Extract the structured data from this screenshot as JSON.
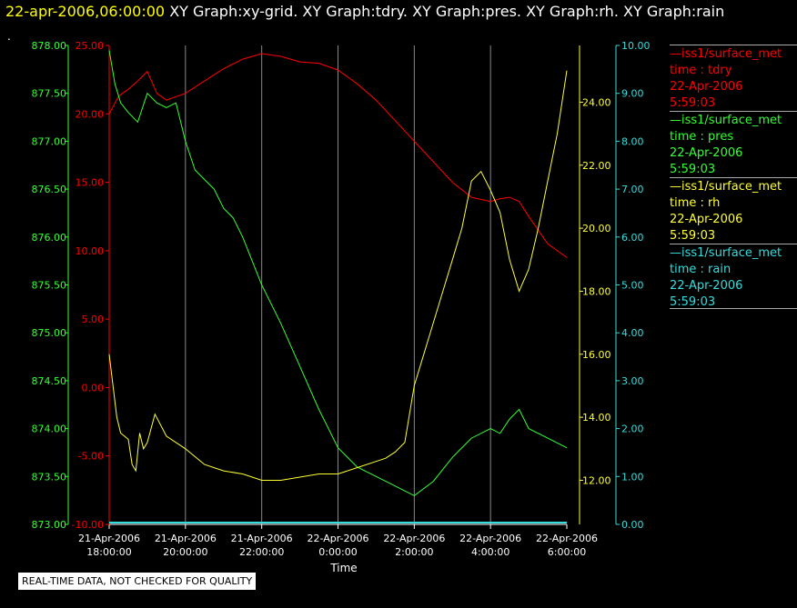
{
  "header": {
    "timestamp": "22-apr-2006,06:00:00",
    "titles": "XY Graph:xy-grid.  XY Graph:tdry.  XY Graph:pres.  XY Graph:rh.  XY Graph:rain"
  },
  "marker": ".",
  "note": "REAL-TIME DATA, NOT CHECKED FOR QUALITY",
  "legend": [
    {
      "source": "—iss1/surface_met",
      "var": "time : tdry",
      "date": "22-Apr-2006",
      "time": "5:59:03",
      "color": "#ff0000"
    },
    {
      "source": "—iss1/surface_met",
      "var": "time : pres",
      "date": "22-Apr-2006",
      "time": "5:59:03",
      "color": "#33ff33"
    },
    {
      "source": "—iss1/surface_met",
      "var": "time : rh",
      "date": "22-Apr-2006",
      "time": "5:59:03",
      "color": "#ffff33"
    },
    {
      "source": "—iss1/surface_met",
      "var": "time : rain",
      "date": "22-Apr-2006",
      "time": "5:59:03",
      "color": "#33dddd"
    }
  ],
  "chart_data": {
    "type": "line",
    "xlabel": "Time",
    "x_ticks": [
      {
        "date": "21-Apr-2006",
        "time": "18:00:00"
      },
      {
        "date": "21-Apr-2006",
        "time": "20:00:00"
      },
      {
        "date": "21-Apr-2006",
        "time": "22:00:00"
      },
      {
        "date": "22-Apr-2006",
        "time": "0:00:00"
      },
      {
        "date": "22-Apr-2006",
        "time": "2:00:00"
      },
      {
        "date": "22-Apr-2006",
        "time": "4:00:00"
      },
      {
        "date": "22-Apr-2006",
        "time": "6:00:00"
      }
    ],
    "x_hours": [
      0,
      2,
      4,
      6,
      8,
      10,
      12
    ],
    "grid": "vertical",
    "axes": {
      "pres": {
        "color": "#33ff33",
        "ylim": [
          873.0,
          878.0
        ],
        "ticks": [
          "873.00",
          "873.50",
          "874.00",
          "874.50",
          "875.00",
          "875.50",
          "876.00",
          "876.50",
          "877.00",
          "877.50",
          "878.00"
        ]
      },
      "tdry": {
        "color": "#ff0000",
        "ylim": [
          -10.0,
          25.0
        ],
        "ticks": [
          "-10.00",
          "-5.00",
          "0.00",
          "5.00",
          "10.00",
          "15.00",
          "20.00",
          "25.00"
        ]
      },
      "rh": {
        "color": "#ffff33",
        "ylim": [
          10.6,
          25.8
        ],
        "ticks": [
          "12.00",
          "14.00",
          "16.00",
          "18.00",
          "20.00",
          "22.00",
          "24.00"
        ]
      },
      "rain": {
        "color": "#33dddd",
        "ylim": [
          0.0,
          10.0
        ],
        "ticks": [
          "0.00",
          "1.00",
          "2.00",
          "3.00",
          "4.00",
          "5.00",
          "6.00",
          "7.00",
          "8.00",
          "9.00",
          "10.00"
        ]
      }
    },
    "series": [
      {
        "name": "tdry",
        "axis": "tdry",
        "color": "#ff0000",
        "x": [
          0,
          0.25,
          0.5,
          0.75,
          1,
          1.25,
          1.5,
          2,
          2.5,
          3,
          3.5,
          4,
          4.5,
          5,
          5.5,
          6,
          6.5,
          7,
          7.5,
          8,
          8.5,
          9,
          9.5,
          10,
          10.25,
          10.5,
          10.75,
          11,
          11.5,
          12
        ],
        "y": [
          20.0,
          21.3,
          21.8,
          22.4,
          23.1,
          21.5,
          21.0,
          21.5,
          22.4,
          23.3,
          24.0,
          24.4,
          24.2,
          23.8,
          23.7,
          23.2,
          22.2,
          21.0,
          19.5,
          18.0,
          16.5,
          15.0,
          13.9,
          13.6,
          13.8,
          13.9,
          13.6,
          12.5,
          10.5,
          9.5
        ]
      },
      {
        "name": "pres",
        "axis": "pres",
        "color": "#33ff33",
        "x": [
          0,
          0.15,
          0.3,
          0.5,
          0.75,
          1,
          1.25,
          1.5,
          1.75,
          2,
          2.25,
          2.5,
          2.75,
          3,
          3.25,
          3.5,
          4,
          4.5,
          5,
          5.5,
          6,
          6.5,
          7,
          7.5,
          8,
          8.5,
          9,
          9.5,
          10,
          10.25,
          10.5,
          10.75,
          11,
          11.5,
          12
        ],
        "y": [
          877.95,
          877.6,
          877.4,
          877.3,
          877.2,
          877.5,
          877.4,
          877.35,
          877.4,
          877.0,
          876.7,
          876.6,
          876.5,
          876.3,
          876.2,
          876.0,
          875.5,
          875.1,
          874.65,
          874.2,
          873.8,
          873.6,
          873.5,
          873.4,
          873.3,
          873.45,
          873.7,
          873.9,
          874.0,
          873.95,
          874.1,
          874.2,
          874.0,
          873.9,
          873.8
        ]
      },
      {
        "name": "rh",
        "axis": "rh",
        "color": "#ffff33",
        "x": [
          0,
          0.1,
          0.2,
          0.3,
          0.5,
          0.6,
          0.7,
          0.8,
          0.9,
          1,
          1.2,
          1.5,
          2,
          2.5,
          3,
          3.5,
          4,
          4.5,
          5,
          5.5,
          6,
          6.5,
          7,
          7.25,
          7.5,
          7.75,
          8,
          8.25,
          8.5,
          8.75,
          9,
          9.25,
          9.5,
          9.75,
          10,
          10.25,
          10.5,
          10.75,
          11,
          11.25,
          11.5,
          11.75,
          12
        ],
        "y": [
          16.0,
          15.0,
          14.0,
          13.5,
          13.3,
          12.5,
          12.3,
          13.5,
          13.0,
          13.2,
          14.1,
          13.4,
          13.0,
          12.5,
          12.3,
          12.2,
          12.0,
          12.0,
          12.1,
          12.2,
          12.2,
          12.4,
          12.6,
          12.7,
          12.9,
          13.2,
          15.0,
          16.0,
          17.0,
          18.0,
          19.0,
          20.0,
          21.5,
          21.8,
          21.2,
          20.5,
          19.0,
          18.0,
          18.7,
          20.0,
          21.5,
          23.0,
          25.0
        ]
      },
      {
        "name": "rain",
        "axis": "rain",
        "color": "#33dddd",
        "x": [
          0,
          12
        ],
        "y": [
          0.0,
          0.0
        ]
      }
    ]
  }
}
